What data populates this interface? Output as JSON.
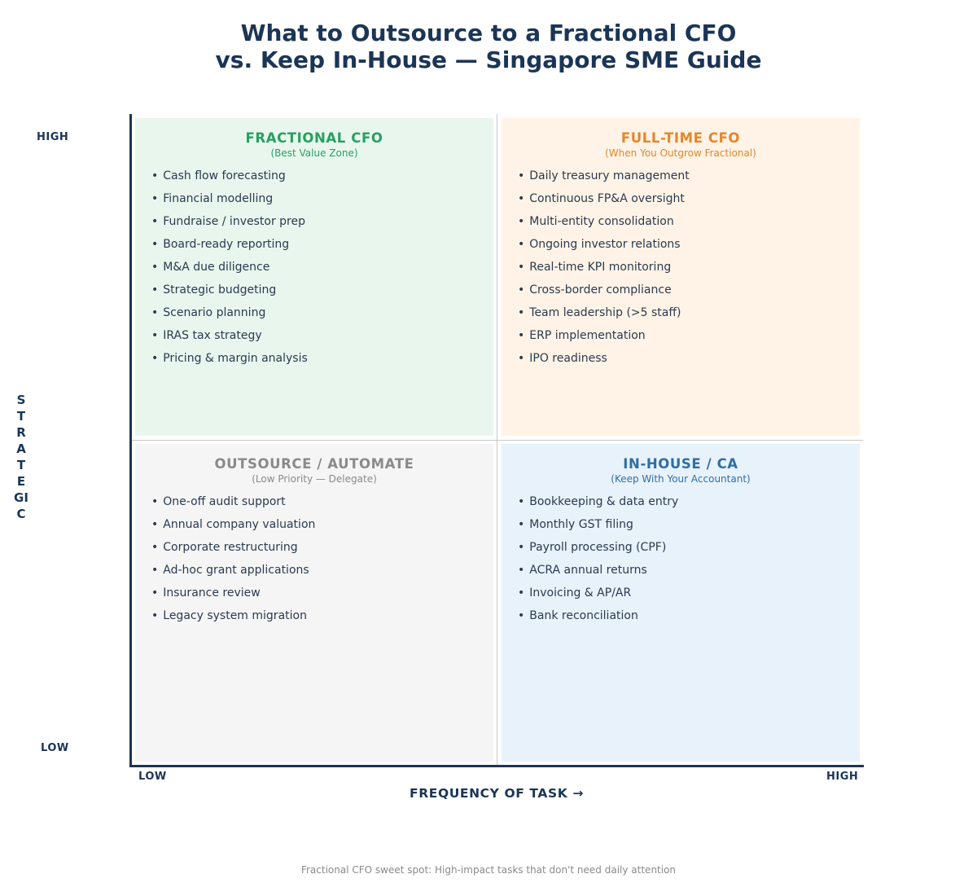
{
  "title": {
    "line1": "What to Outsource to a Fractional CFO",
    "line2": "vs. Keep In-House — Singapore SME Guide"
  },
  "axes": {
    "y_title": "STRATEGIC",
    "y_high": "HIGH",
    "y_low": "LOW",
    "x_title": "FREQUENCY OF TASK  →",
    "x_low": "LOW",
    "x_high": "HIGH"
  },
  "quadrants": {
    "top_left": {
      "title": "FRACTIONAL CFO",
      "subtitle": "(Best Value Zone)",
      "color": "#27a060",
      "background": "#e8f6ee",
      "items": [
        "Cash flow forecasting",
        "Financial modelling",
        "Fundraise / investor prep",
        "Board-ready reporting",
        "M&A due diligence",
        "Strategic budgeting",
        "Scenario planning",
        "IRAS tax strategy",
        "Pricing & margin analysis"
      ]
    },
    "top_right": {
      "title": "FULL-TIME CFO",
      "subtitle": "(When You Outgrow Fractional)",
      "color": "#e3862b",
      "background": "#fef3e6",
      "items": [
        "Daily treasury management",
        "Continuous FP&A oversight",
        "Multi-entity consolidation",
        "Ongoing investor relations",
        "Real-time KPI monitoring",
        "Cross-border compliance",
        "Team leadership (>5 staff)",
        "ERP implementation",
        "IPO readiness"
      ]
    },
    "bottom_left": {
      "title": "OUTSOURCE / AUTOMATE",
      "subtitle": "(Low Priority — Delegate)",
      "color": "#8a8a8a",
      "background": "#f5f5f5",
      "items": [
        "One-off audit support",
        "Annual company valuation",
        "Corporate restructuring",
        "Ad-hoc grant applications",
        "Insurance review",
        "Legacy system migration"
      ]
    },
    "bottom_right": {
      "title": "IN-HOUSE / CA",
      "subtitle": "(Keep With Your Accountant)",
      "color": "#2f6ea5",
      "background": "#e8f2fb",
      "items": [
        "Bookkeeping & data entry",
        "Monthly GST filing",
        "Payroll processing (CPF)",
        "ACRA annual returns",
        "Invoicing & AP/AR",
        "Bank reconciliation"
      ]
    }
  },
  "footnote": "Fractional CFO sweet spot: High-impact tasks that don't need daily attention"
}
